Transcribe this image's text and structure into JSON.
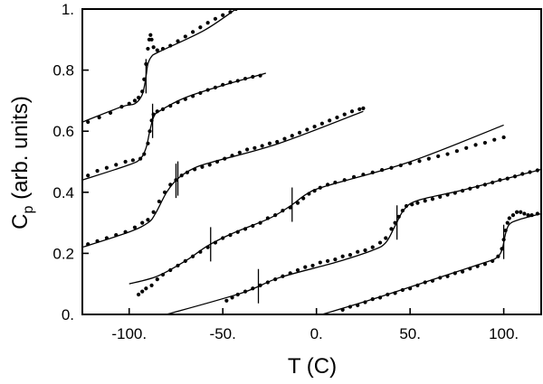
{
  "chart_data": {
    "type": "line",
    "title": "",
    "xlabel": "T (C)",
    "ylabel_main": "C",
    "ylabel_sub": "p",
    "ylabel_rest": " (arb. units)",
    "xlim": [
      -125,
      120
    ],
    "ylim": [
      0,
      1
    ],
    "grid": false,
    "legend": "none",
    "x_ticks": [
      -100,
      -50,
      0,
      50,
      100
    ],
    "x_tick_labels": [
      "-100.",
      "-50.",
      "0.",
      "50.",
      "100."
    ],
    "y_ticks": [
      0,
      0.2,
      0.4,
      0.6,
      0.8,
      1.0
    ],
    "y_tick_labels": [
      "0.",
      "0.2",
      "0.4",
      "0.6",
      "0.8",
      "1."
    ],
    "series": [
      {
        "fit": [
          [
            -125,
            0.63
          ],
          [
            -104,
            0.68
          ],
          [
            -97,
            0.69
          ],
          [
            -93,
            0.72
          ],
          [
            -91,
            0.78
          ],
          [
            -90,
            0.82
          ],
          [
            -88,
            0.845
          ],
          [
            -84,
            0.86
          ],
          [
            -60,
            0.93
          ],
          [
            -43,
            1.0
          ]
        ],
        "points": [
          [
            -122,
            0.63
          ],
          [
            -116,
            0.645
          ],
          [
            -110,
            0.66
          ],
          [
            -104,
            0.68
          ],
          [
            -100,
            0.69
          ],
          [
            -97,
            0.7
          ],
          [
            -95,
            0.71
          ],
          [
            -93,
            0.73
          ],
          [
            -92,
            0.77
          ],
          [
            -91,
            0.82
          ],
          [
            -90,
            0.87
          ],
          [
            -89.3,
            0.9
          ],
          [
            -88.6,
            0.915
          ],
          [
            -88,
            0.9
          ],
          [
            -87,
            0.875
          ],
          [
            -85,
            0.865
          ],
          [
            -82,
            0.87
          ],
          [
            -78,
            0.88
          ],
          [
            -74,
            0.895
          ],
          [
            -70,
            0.91
          ],
          [
            -66,
            0.925
          ],
          [
            -62,
            0.94
          ],
          [
            -58,
            0.955
          ],
          [
            -54,
            0.968
          ],
          [
            -50,
            0.98
          ],
          [
            -46,
            0.99
          ],
          [
            -43,
            1.0
          ]
        ],
        "markers": [
          -91
        ]
      },
      {
        "fit": [
          [
            -125,
            0.44
          ],
          [
            -100,
            0.49
          ],
          [
            -94,
            0.51
          ],
          [
            -91,
            0.545
          ],
          [
            -89,
            0.6
          ],
          [
            -87,
            0.645
          ],
          [
            -84,
            0.665
          ],
          [
            -70,
            0.71
          ],
          [
            -50,
            0.75
          ],
          [
            -27,
            0.79
          ]
        ],
        "points": [
          [
            -122,
            0.455
          ],
          [
            -117,
            0.47
          ],
          [
            -112,
            0.48
          ],
          [
            -107,
            0.49
          ],
          [
            -102,
            0.5
          ],
          [
            -98,
            0.505
          ],
          [
            -94,
            0.51
          ],
          [
            -92,
            0.525
          ],
          [
            -90,
            0.56
          ],
          [
            -89,
            0.6
          ],
          [
            -88,
            0.635
          ],
          [
            -87,
            0.655
          ],
          [
            -85,
            0.665
          ],
          [
            -82,
            0.672
          ],
          [
            -78,
            0.683
          ],
          [
            -74,
            0.695
          ],
          [
            -70,
            0.705
          ],
          [
            -66,
            0.715
          ],
          [
            -62,
            0.725
          ],
          [
            -58,
            0.735
          ],
          [
            -54,
            0.743
          ],
          [
            -50,
            0.752
          ],
          [
            -46,
            0.76
          ],
          [
            -42,
            0.765
          ],
          [
            -38,
            0.772
          ],
          [
            -34,
            0.778
          ],
          [
            -30,
            0.782
          ]
        ],
        "markers": [
          -87.5
        ]
      },
      {
        "fit": [
          [
            -125,
            0.22
          ],
          [
            -100,
            0.27
          ],
          [
            -90,
            0.3
          ],
          [
            -86,
            0.33
          ],
          [
            -80,
            0.4
          ],
          [
            -74,
            0.445
          ],
          [
            -65,
            0.48
          ],
          [
            -55,
            0.5
          ],
          [
            -20,
            0.56
          ],
          [
            25,
            0.665
          ]
        ],
        "points": [
          [
            -122,
            0.23
          ],
          [
            -117,
            0.24
          ],
          [
            -112,
            0.25
          ],
          [
            -107,
            0.26
          ],
          [
            -102,
            0.27
          ],
          [
            -97,
            0.285
          ],
          [
            -93,
            0.3
          ],
          [
            -90,
            0.31
          ],
          [
            -87,
            0.335
          ],
          [
            -84,
            0.37
          ],
          [
            -81,
            0.4
          ],
          [
            -78,
            0.425
          ],
          [
            -75,
            0.44
          ],
          [
            -72,
            0.455
          ],
          [
            -69,
            0.465
          ],
          [
            -65,
            0.475
          ],
          [
            -61,
            0.483
          ],
          [
            -57,
            0.49
          ],
          [
            -53,
            0.5
          ],
          [
            -49,
            0.51
          ],
          [
            -45,
            0.52
          ],
          [
            -41,
            0.53
          ],
          [
            -37,
            0.54
          ],
          [
            -33,
            0.545
          ],
          [
            -29,
            0.552
          ],
          [
            -25,
            0.56
          ],
          [
            -21,
            0.565
          ],
          [
            -17,
            0.575
          ],
          [
            -13,
            0.585
          ],
          [
            -9,
            0.595
          ],
          [
            -5,
            0.605
          ],
          [
            -1,
            0.615
          ],
          [
            3,
            0.625
          ],
          [
            7,
            0.635
          ],
          [
            11,
            0.645
          ],
          [
            15,
            0.655
          ],
          [
            19,
            0.665
          ],
          [
            23,
            0.672
          ],
          [
            25,
            0.675
          ]
        ],
        "markers": [
          -75,
          -74
        ]
      },
      {
        "fit": [
          [
            -100,
            0.1
          ],
          [
            -85,
            0.125
          ],
          [
            -70,
            0.175
          ],
          [
            -58,
            0.225
          ],
          [
            -45,
            0.265
          ],
          [
            -25,
            0.315
          ],
          [
            -14,
            0.355
          ],
          [
            -5,
            0.395
          ],
          [
            5,
            0.42
          ],
          [
            50,
            0.5
          ],
          [
            100,
            0.62
          ]
        ],
        "points": [
          [
            -95,
            0.065
          ],
          [
            -93,
            0.075
          ],
          [
            -91,
            0.085
          ],
          [
            -88,
            0.095
          ],
          [
            -85,
            0.115
          ],
          [
            -82,
            0.13
          ],
          [
            -78,
            0.145
          ],
          [
            -74,
            0.16
          ],
          [
            -70,
            0.175
          ],
          [
            -66,
            0.19
          ],
          [
            -62,
            0.205
          ],
          [
            -58,
            0.22
          ],
          [
            -54,
            0.235
          ],
          [
            -50,
            0.25
          ],
          [
            -46,
            0.26
          ],
          [
            -42,
            0.27
          ],
          [
            -38,
            0.28
          ],
          [
            -34,
            0.29
          ],
          [
            -30,
            0.3
          ],
          [
            -26,
            0.315
          ],
          [
            -22,
            0.325
          ],
          [
            -18,
            0.34
          ],
          [
            -14,
            0.35
          ],
          [
            -10,
            0.365
          ],
          [
            -7,
            0.38
          ],
          [
            -4,
            0.395
          ],
          [
            -1,
            0.405
          ],
          [
            2,
            0.415
          ],
          [
            6,
            0.425
          ],
          [
            10,
            0.432
          ],
          [
            15,
            0.44
          ],
          [
            20,
            0.45
          ],
          [
            25,
            0.458
          ],
          [
            30,
            0.465
          ],
          [
            35,
            0.473
          ],
          [
            40,
            0.48
          ],
          [
            45,
            0.488
          ],
          [
            50,
            0.495
          ],
          [
            55,
            0.502
          ],
          [
            60,
            0.51
          ],
          [
            65,
            0.518
          ],
          [
            70,
            0.525
          ],
          [
            75,
            0.535
          ],
          [
            80,
            0.545
          ],
          [
            85,
            0.555
          ],
          [
            90,
            0.562
          ],
          [
            95,
            0.572
          ],
          [
            100,
            0.58
          ]
        ],
        "markers": [
          -56.5,
          -13
        ]
      },
      {
        "fit": [
          [
            -80,
            0.0
          ],
          [
            -40,
            0.07
          ],
          [
            -20,
            0.12
          ],
          [
            10,
            0.17
          ],
          [
            30,
            0.21
          ],
          [
            37,
            0.235
          ],
          [
            42,
            0.29
          ],
          [
            47,
            0.345
          ],
          [
            55,
            0.375
          ],
          [
            80,
            0.41
          ],
          [
            120,
            0.475
          ]
        ],
        "points": [
          [
            -48,
            0.045
          ],
          [
            -45,
            0.055
          ],
          [
            -42,
            0.065
          ],
          [
            -38,
            0.075
          ],
          [
            -34,
            0.085
          ],
          [
            -30,
            0.095
          ],
          [
            -26,
            0.105
          ],
          [
            -22,
            0.115
          ],
          [
            -18,
            0.125
          ],
          [
            -14,
            0.135
          ],
          [
            -10,
            0.145
          ],
          [
            -6,
            0.155
          ],
          [
            -2,
            0.16
          ],
          [
            2,
            0.17
          ],
          [
            6,
            0.175
          ],
          [
            10,
            0.18
          ],
          [
            14,
            0.19
          ],
          [
            18,
            0.195
          ],
          [
            22,
            0.205
          ],
          [
            26,
            0.21
          ],
          [
            30,
            0.22
          ],
          [
            34,
            0.235
          ],
          [
            37,
            0.25
          ],
          [
            40,
            0.28
          ],
          [
            42,
            0.3
          ],
          [
            44,
            0.32
          ],
          [
            46,
            0.34
          ],
          [
            48,
            0.355
          ],
          [
            51,
            0.36
          ],
          [
            54,
            0.365
          ],
          [
            58,
            0.372
          ],
          [
            62,
            0.378
          ],
          [
            66,
            0.385
          ],
          [
            70,
            0.392
          ],
          [
            74,
            0.398
          ],
          [
            78,
            0.405
          ],
          [
            82,
            0.412
          ],
          [
            86,
            0.418
          ],
          [
            90,
            0.425
          ],
          [
            94,
            0.432
          ],
          [
            98,
            0.44
          ],
          [
            102,
            0.445
          ],
          [
            106,
            0.452
          ],
          [
            110,
            0.46
          ],
          [
            114,
            0.466
          ],
          [
            118,
            0.472
          ]
        ],
        "markers": [
          -31,
          43
        ]
      },
      {
        "fit": [
          [
            3,
            0.0
          ],
          [
            30,
            0.05
          ],
          [
            60,
            0.11
          ],
          [
            90,
            0.17
          ],
          [
            96,
            0.185
          ],
          [
            99,
            0.21
          ],
          [
            101,
            0.265
          ],
          [
            103,
            0.295
          ],
          [
            108,
            0.31
          ],
          [
            120,
            0.33
          ]
        ],
        "points": [
          [
            14,
            0.015
          ],
          [
            18,
            0.025
          ],
          [
            22,
            0.03
          ],
          [
            26,
            0.04
          ],
          [
            30,
            0.05
          ],
          [
            34,
            0.055
          ],
          [
            38,
            0.065
          ],
          [
            42,
            0.07
          ],
          [
            46,
            0.08
          ],
          [
            50,
            0.085
          ],
          [
            54,
            0.095
          ],
          [
            58,
            0.105
          ],
          [
            62,
            0.11
          ],
          [
            66,
            0.12
          ],
          [
            70,
            0.125
          ],
          [
            74,
            0.135
          ],
          [
            78,
            0.14
          ],
          [
            82,
            0.15
          ],
          [
            86,
            0.158
          ],
          [
            90,
            0.165
          ],
          [
            94,
            0.175
          ],
          [
            97,
            0.19
          ],
          [
            99,
            0.215
          ],
          [
            100,
            0.245
          ],
          [
            101,
            0.275
          ],
          [
            102,
            0.3
          ],
          [
            103,
            0.315
          ],
          [
            105,
            0.325
          ],
          [
            107,
            0.335
          ],
          [
            109,
            0.335
          ],
          [
            111,
            0.33
          ],
          [
            113,
            0.325
          ],
          [
            115,
            0.325
          ],
          [
            118,
            0.33
          ]
        ],
        "markers": [
          100
        ]
      }
    ]
  }
}
